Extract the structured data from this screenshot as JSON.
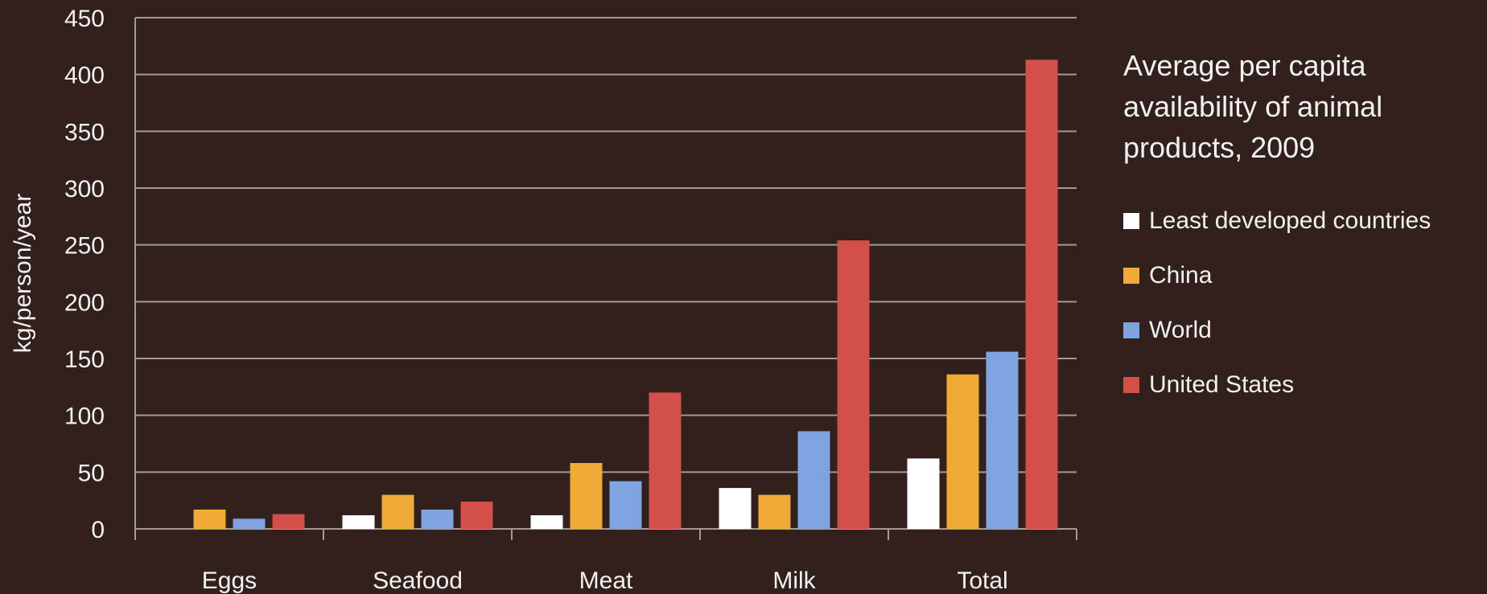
{
  "chart_data": {
    "type": "bar",
    "title": "Average per capita availability of animal products, 2009",
    "ylabel": "kg/person/year",
    "xlabel": "",
    "categories": [
      "Eggs",
      "Seafood",
      "Meat",
      "Milk",
      "Total"
    ],
    "series": [
      {
        "name": "Least developed countries",
        "color": "#ffffff",
        "values": [
          0,
          12,
          12,
          36,
          62
        ]
      },
      {
        "name": "China",
        "color": "#f0aa38",
        "values": [
          17,
          30,
          58,
          30,
          136
        ]
      },
      {
        "name": "World",
        "color": "#7fa2e0",
        "values": [
          9,
          17,
          42,
          86,
          156
        ]
      },
      {
        "name": "United States",
        "color": "#d24f4a",
        "values": [
          13,
          24,
          120,
          254,
          413
        ]
      }
    ],
    "ylim": [
      0,
      450
    ],
    "yticks": [
      0,
      50,
      100,
      150,
      200,
      250,
      300,
      350,
      400,
      450
    ],
    "grid": true,
    "legend_position": "right"
  }
}
